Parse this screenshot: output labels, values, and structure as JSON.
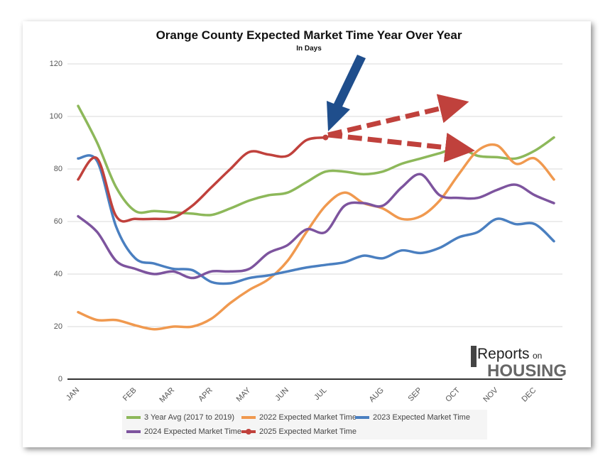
{
  "chart_data": {
    "type": "line",
    "title": "Orange County Expected Market Time Year Over Year",
    "subtitle": "In Days",
    "brand": [
      "Reports",
      "on",
      "HOUSING"
    ],
    "categories": [
      "JAN",
      null,
      null,
      "FEB",
      null,
      "MAR",
      null,
      "APR",
      null,
      "MAY",
      null,
      "JUN",
      null,
      "JUL",
      null,
      null,
      "AUG",
      null,
      "SEP",
      null,
      "OCT",
      null,
      "NOV",
      null,
      "DEC",
      null
    ],
    "ylim": [
      0,
      120
    ],
    "yticks": [
      0,
      20,
      40,
      60,
      80,
      100,
      120
    ],
    "grid": true,
    "series": [
      {
        "name": "3 Year Avg (2017 to 2019)",
        "color": "#8db85a",
        "values": [
          104,
          90,
          73,
          64,
          64,
          63.5,
          63,
          62.5,
          65,
          68,
          70,
          71,
          75,
          79,
          79,
          78,
          79,
          82,
          84,
          86,
          88,
          85,
          84.5,
          84,
          87,
          92
        ]
      },
      {
        "name": "2022 Expected Market Time",
        "color": "#f0994f",
        "values": [
          25.5,
          22.5,
          22.5,
          20.5,
          19,
          20,
          20,
          23,
          29,
          34,
          38,
          45,
          56,
          66,
          71,
          67,
          65,
          61,
          62,
          68,
          78,
          87,
          89,
          82,
          84,
          76
        ]
      },
      {
        "name": "2023 Expected Market Time",
        "color": "#4a7fc0",
        "values": [
          84,
          83,
          58,
          46,
          44,
          42,
          41.5,
          37,
          36.5,
          38.5,
          39.5,
          41,
          42.5,
          43.5,
          44.5,
          47,
          46,
          49,
          48,
          50,
          54,
          56,
          61,
          59,
          59,
          52.5
        ]
      },
      {
        "name": "2024 Expected Market Time",
        "color": "#7d549e",
        "values": [
          62,
          56,
          45,
          42,
          40,
          41,
          38.5,
          41,
          41,
          42,
          48,
          51,
          57,
          56,
          66,
          67,
          66,
          73,
          78,
          70,
          69,
          69,
          72,
          74,
          70,
          67
        ]
      },
      {
        "name": "2025 Expected Market Time",
        "color": "#c0413c",
        "values": [
          76,
          84,
          62,
          61,
          61,
          61.5,
          66,
          73,
          80,
          86.5,
          85.5,
          85,
          91,
          92,
          null,
          null,
          null,
          null,
          null,
          null,
          null,
          null,
          null,
          null,
          null,
          null
        ]
      }
    ]
  }
}
